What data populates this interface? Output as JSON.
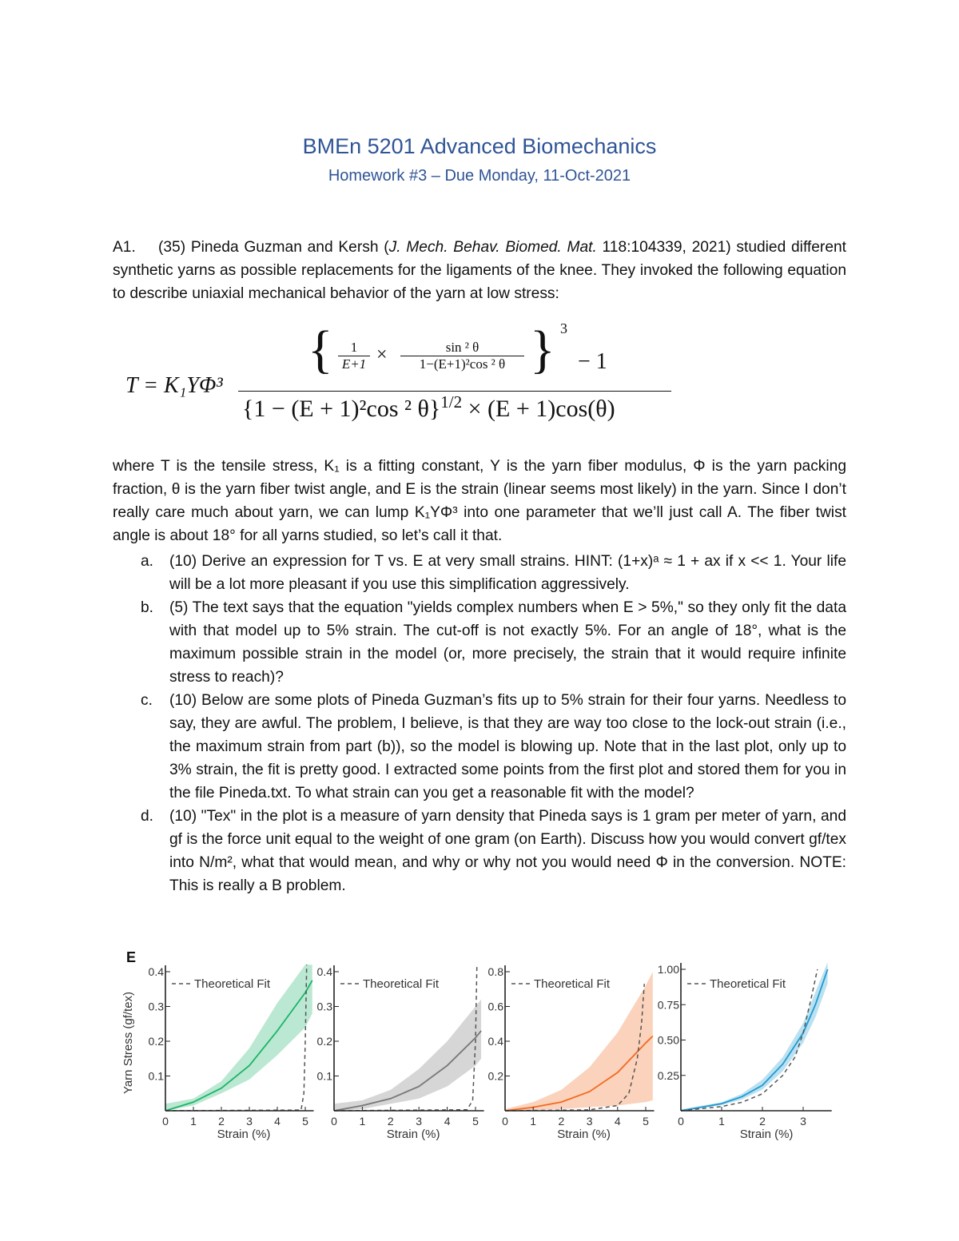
{
  "header": {
    "title": "BMEn 5201 Advanced Biomechanics",
    "subtitle": "Homework #3 – Due Monday, 11-Oct-2021"
  },
  "problem": {
    "label": "A1.",
    "intro_a": "(35) Pineda Guzman and Kersh (",
    "journal": "J. Mech. Behav. Biomed. Mat.",
    "intro_b": " 118:104339, 2021) studied different synthetic yarns as possible replacements for the ligaments of the knee. They invoked the following equation to describe uniaxial mechanical behavior of the yarn at low stress:",
    "where": "where T is the tensile stress, K₁ is a fitting constant, Y is the yarn fiber modulus, Φ is the yarn packing fraction, θ is the yarn fiber twist angle, and E is the strain (linear seems most likely) in the yarn. Since I don’t really care much about yarn, we can lump K₁YΦ³ into one parameter that we’ll just call A.  The fiber twist angle is about 18° for all yarns studied, so let’s call it that."
  },
  "equation": {
    "lhs": "T = K₁YΦ³",
    "open_brace": "{",
    "close_brace": "}",
    "exp3": "3",
    "minus_one": "− 1",
    "f1_num": "1",
    "f1_den": "E+1",
    "times": "×",
    "f2_num": "sin ² θ",
    "f2_den": "1−(E+1)²cos ² θ",
    "denominator": "{1 − (E + 1)²cos ² θ}",
    "den_exp": "1/2",
    "den_tail": " × (E + 1)cos(θ)"
  },
  "parts": [
    {
      "marker": "a.",
      "text": "(10) Derive an expression for T vs. E at very small strains.  HINT: (1+x)ᵃ ≈ 1 + ax if x << 1. Your life will be a lot more pleasant if you use this simplification aggressively."
    },
    {
      "marker": "b.",
      "text": "(5) The text says that the equation \"yields complex numbers when E > 5%,\" so they only fit the data with that model up to 5% strain.  The cut-off is not exactly 5%. For an angle of 18°, what is the maximum possible strain in the model (or, more precisely, the strain that it would require infinite stress to reach)?"
    },
    {
      "marker": "c.",
      "text": "(10) Below are some plots of Pineda Guzman’s fits up to 5% strain for their four yarns. Needless to say, they are awful. The problem, I believe, is that they are way too close to the lock-out strain (i.e., the maximum strain from part (b)), so the model is blowing up. Note that in the last plot, only up to 3% strain, the fit is pretty good. I extracted some points from the first plot and stored them for you in the file Pineda.txt.  To what strain can you get a reasonable fit with the model?"
    },
    {
      "marker": "d.",
      "text": "(10) \"Tex\" in the plot is a measure of yarn density that Pineda says is 1 gram per meter of yarn, and gf is the force unit equal to the weight of one gram (on Earth). Discuss how you would convert gf/tex into N/m², what that would mean, and why or why not you would need Φ in the conversion. NOTE: This is really a B problem."
    }
  ],
  "figure": {
    "panel_label": "E"
  },
  "chart_data": [
    {
      "type": "line",
      "color": "#1db46a",
      "ylabel": "Yarn Stress (gf/tex)",
      "xlabel": "Strain (%)",
      "legend": "Theoretical Fit",
      "xticks": [
        "0",
        "1",
        "2",
        "3",
        "4",
        "5"
      ],
      "yticks": [
        "0.1",
        "0.2",
        "0.3",
        "0.4"
      ],
      "xlim": [
        0,
        5.3
      ],
      "ylim": [
        0,
        0.4
      ],
      "mean": {
        "x": [
          0,
          1,
          2,
          3,
          4,
          5,
          5.25
        ],
        "y": [
          0,
          0.025,
          0.065,
          0.13,
          0.23,
          0.34,
          0.375
        ]
      },
      "band_upper": [
        0.02,
        0.035,
        0.085,
        0.18,
        0.31,
        0.42,
        0.42
      ],
      "band_lower": [
        0,
        0.015,
        0.05,
        0.09,
        0.16,
        0.24,
        0.28
      ],
      "fit": {
        "x": [
          0,
          4.85,
          4.95,
          5.0,
          5.05
        ],
        "y": [
          0,
          0.002,
          0.05,
          0.2,
          0.42
        ]
      }
    },
    {
      "type": "line",
      "color": "#777777",
      "ylabel": "",
      "xlabel": "Strain (%)",
      "legend": "Theoretical Fit",
      "xticks": [
        "0",
        "1",
        "2",
        "3",
        "4",
        "5"
      ],
      "yticks": [
        "0.1",
        "0.2",
        "0.3",
        "0.4"
      ],
      "xlim": [
        0,
        5.3
      ],
      "ylim": [
        0,
        0.4
      ],
      "mean": {
        "x": [
          0,
          1,
          2,
          3,
          4,
          5,
          5.2
        ],
        "y": [
          0,
          0.015,
          0.035,
          0.07,
          0.13,
          0.21,
          0.23
        ]
      },
      "band_upper": [
        0.02,
        0.03,
        0.06,
        0.12,
        0.2,
        0.3,
        0.32
      ],
      "band_lower": [
        0,
        0.005,
        0.02,
        0.035,
        0.07,
        0.13,
        0.15
      ],
      "fit": {
        "x": [
          0,
          4.7,
          4.9,
          5.0,
          5.05
        ],
        "y": [
          0,
          0.003,
          0.03,
          0.2,
          0.42
        ]
      }
    },
    {
      "type": "line",
      "color": "#f26a22",
      "ylabel": "",
      "xlabel": "Strain (%)",
      "legend": "Theoretical Fit",
      "xticks": [
        "0",
        "1",
        "2",
        "3",
        "4",
        "5"
      ],
      "yticks": [
        "0.2",
        "0.4",
        "0.6",
        "0.8"
      ],
      "xlim": [
        0,
        5.3
      ],
      "ylim": [
        0,
        0.8
      ],
      "mean": {
        "x": [
          0,
          1,
          2,
          3,
          4,
          5,
          5.25
        ],
        "y": [
          0,
          0.02,
          0.05,
          0.11,
          0.22,
          0.39,
          0.43
        ]
      },
      "band_upper": [
        0.01,
        0.05,
        0.12,
        0.25,
        0.45,
        0.72,
        0.8
      ],
      "band_lower": [
        0,
        0.005,
        0.01,
        0.02,
        0.03,
        0.05,
        0.06
      ],
      "fit": {
        "x": [
          0,
          3,
          4,
          4.4,
          4.7,
          4.85,
          4.95
        ],
        "y": [
          0,
          0.005,
          0.03,
          0.1,
          0.3,
          0.5,
          0.73
        ]
      }
    },
    {
      "type": "line",
      "color": "#1e9ad0",
      "ylabel": "",
      "xlabel": "Strain (%)",
      "legend": "Theoretical Fit",
      "xticks": [
        "0",
        "1",
        "2",
        "3"
      ],
      "yticks": [
        "0.25",
        "0.50",
        "0.75",
        "1.00"
      ],
      "xlim": [
        0,
        3.7
      ],
      "ylim": [
        0,
        1.0
      ],
      "mean": {
        "x": [
          0,
          1,
          1.5,
          2,
          2.5,
          3,
          3.3,
          3.6
        ],
        "y": [
          0,
          0.05,
          0.1,
          0.18,
          0.33,
          0.55,
          0.75,
          1.0
        ]
      },
      "band_upper": [
        0.01,
        0.06,
        0.12,
        0.22,
        0.38,
        0.62,
        0.84,
        1.05
      ],
      "band_lower": [
        0,
        0.04,
        0.08,
        0.15,
        0.28,
        0.48,
        0.66,
        0.9
      ],
      "fit": {
        "x": [
          0,
          1,
          1.5,
          2,
          2.5,
          2.8,
          3.0,
          3.2,
          3.35
        ],
        "y": [
          0,
          0.03,
          0.06,
          0.12,
          0.25,
          0.38,
          0.55,
          0.8,
          1.0
        ]
      }
    }
  ]
}
